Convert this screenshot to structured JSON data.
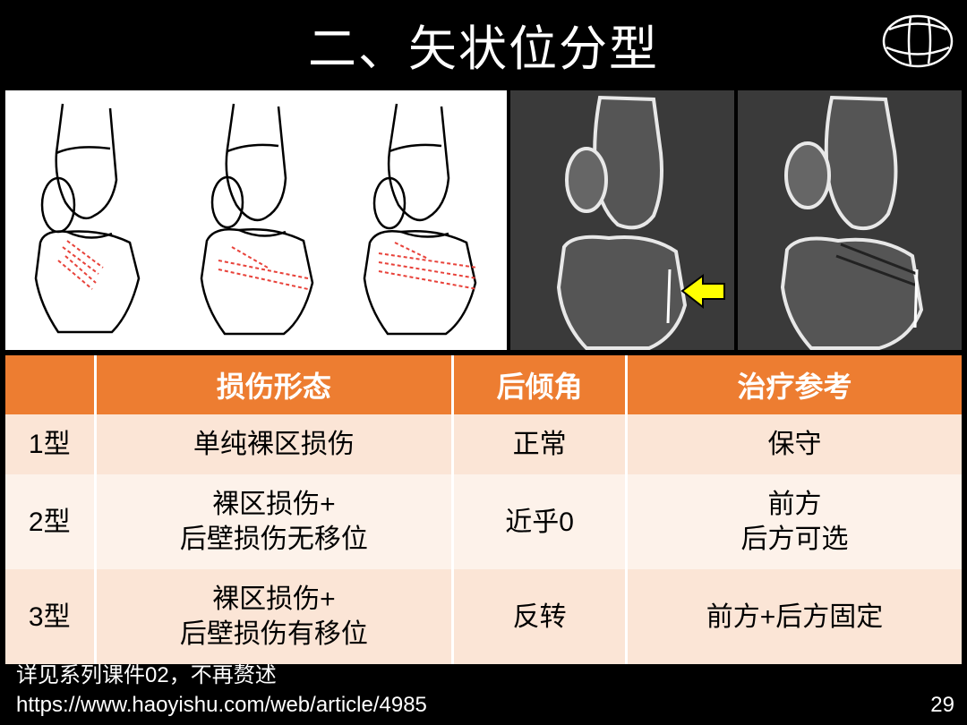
{
  "title": "二、矢状位分型",
  "colors": {
    "background": "#000000",
    "header_bg": "#ed7d31",
    "header_text": "#ffffff",
    "row_odd": "#fbe5d6",
    "row_even": "#fdf2ea",
    "text_white": "#ffffff",
    "text_black": "#000000",
    "fracture_line": "#e8423a",
    "arrow_fill": "#ffff00",
    "arrow_stroke": "#000000"
  },
  "images": {
    "diagrams": [
      "knee-sagittal-type1",
      "knee-sagittal-type2",
      "knee-sagittal-type3"
    ],
    "ct_scans": [
      "ct-sagittal-1",
      "ct-sagittal-2"
    ]
  },
  "table": {
    "columns": [
      "",
      "损伤形态",
      "后倾角",
      "治疗参考"
    ],
    "rows": [
      [
        "1型",
        "单纯裸区损伤",
        "正常",
        "保守"
      ],
      [
        "2型",
        "裸区损伤+\n后壁损伤无移位",
        "近乎0",
        "前方\n后方可选"
      ],
      [
        "3型",
        "裸区损伤+\n后壁损伤有移位",
        "反转",
        "前方+后方固定"
      ]
    ],
    "header_fontsize": 32,
    "cell_fontsize": 30
  },
  "footer": {
    "line1": "详见系列课件02，不再赘述",
    "line2": "https://www.haoyishu.com/web/article/4985"
  },
  "page_number": "29"
}
